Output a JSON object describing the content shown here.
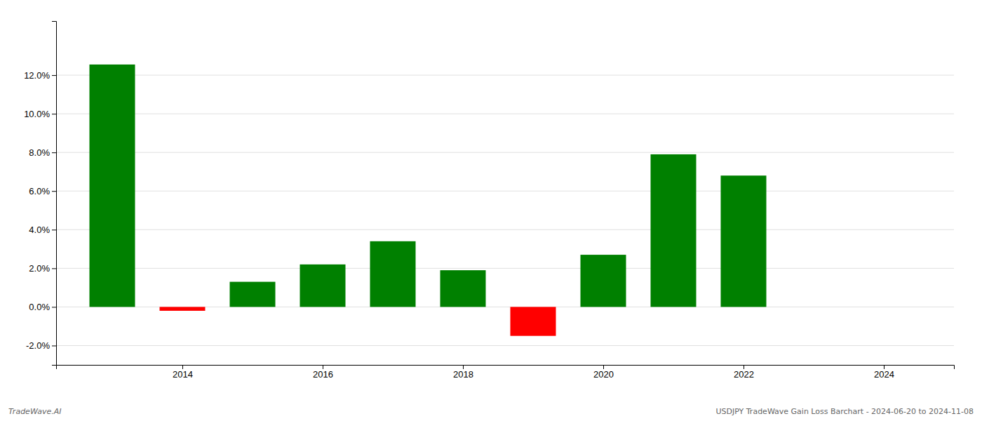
{
  "chart_data": {
    "type": "bar",
    "x": [
      2013,
      2014,
      2015,
      2016,
      2017,
      2018,
      2019,
      2020,
      2021,
      2022,
      2023
    ],
    "values": [
      0.1255,
      -0.002,
      0.013,
      0.022,
      0.034,
      0.019,
      -0.015,
      0.027,
      0.079,
      0.068,
      0.0
    ],
    "colors": [
      "#008000",
      "#FF0000",
      "#008000",
      "#008000",
      "#008000",
      "#008000",
      "#FF0000",
      "#008000",
      "#008000",
      "#008000",
      "#008000"
    ],
    "xlim": [
      2012.2,
      2025.0
    ],
    "xticks": [
      2014,
      2016,
      2018,
      2020,
      2022,
      2024
    ],
    "ylim": [
      -0.03,
      0.148
    ],
    "yticks": [
      {
        "value": -0.02,
        "label": "-2.0%"
      },
      {
        "value": 0.0,
        "label": "0.0%"
      },
      {
        "value": 0.02,
        "label": "2.0%"
      },
      {
        "value": 0.04,
        "label": "4.0%"
      },
      {
        "value": 0.06,
        "label": "6.0%"
      },
      {
        "value": 0.08,
        "label": "8.0%"
      },
      {
        "value": 0.1,
        "label": "10.0%"
      },
      {
        "value": 0.12,
        "label": "12.0%"
      }
    ],
    "grid": true,
    "annotations": [
      "TradeWave.AI",
      "USDJPY TradeWave Gain Loss Barchart - 2024-06-20 to 2024-11-08"
    ]
  }
}
